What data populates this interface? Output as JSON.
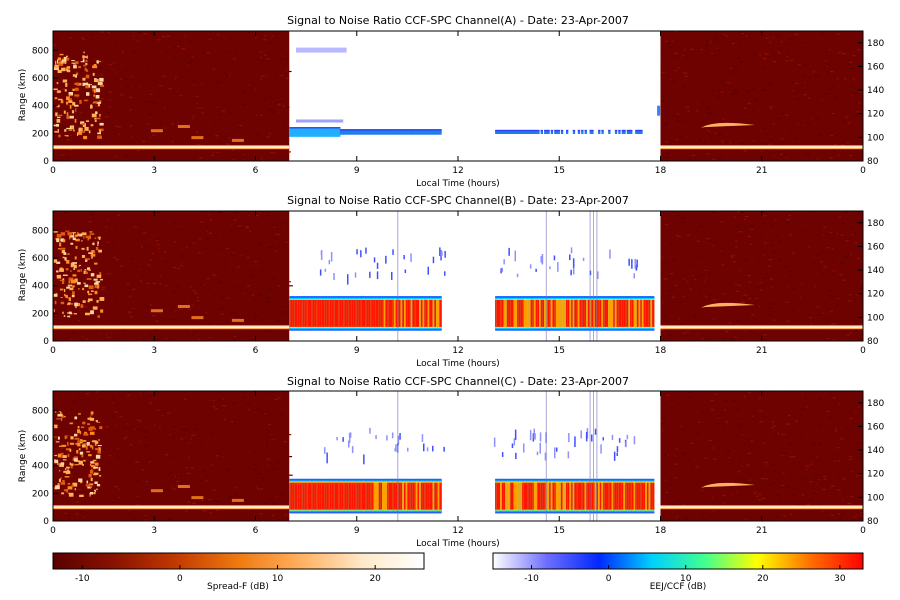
{
  "chart_data": {
    "type": "heatmap",
    "panels": [
      {
        "title": "Signal to Noise Ratio CCF-SPC Channel(A) - Date: 23-Apr-2007",
        "channel": "A",
        "variant": "A",
        "xlabel": "Local Time (hours)",
        "ylabel": "Range (km)",
        "xticks": [
          "0",
          "3",
          "6",
          "9",
          "12",
          "15",
          "18",
          "21",
          "0"
        ],
        "yticks_left": [
          "0",
          "200",
          "400",
          "600",
          "800"
        ],
        "yticks_right": [
          "80",
          "100",
          "120",
          "140",
          "160",
          "180"
        ],
        "ylim_km": [
          0,
          940
        ],
        "ylim_right": [
          80,
          190
        ],
        "xlim_hours": [
          0,
          24
        ],
        "spreadF_windows_hours": [
          [
            0,
            7
          ],
          [
            18,
            24
          ]
        ],
        "eej_ccf_window_hours": [
          7,
          18
        ],
        "eej_layer_km": 210,
        "eej_snr_dB": 0
      },
      {
        "title": "Signal to Noise Ratio CCF-SPC Channel(B) - Date: 23-Apr-2007",
        "channel": "B",
        "variant": "B",
        "xlabel": "Local Time (hours)",
        "ylabel": "Range (km)",
        "xticks": [
          "0",
          "3",
          "6",
          "9",
          "12",
          "15",
          "18",
          "21",
          "0"
        ],
        "yticks_left": [
          "0",
          "200",
          "400",
          "600",
          "800"
        ],
        "yticks_right": [
          "80",
          "100",
          "120",
          "140",
          "160",
          "180"
        ],
        "ylim_km": [
          0,
          940
        ],
        "ylim_right": [
          80,
          190
        ],
        "xlim_hours": [
          0,
          24
        ],
        "spreadF_windows_hours": [
          [
            0,
            7
          ],
          [
            18,
            24
          ]
        ],
        "eej_ccf_window_hours": [
          7,
          18
        ],
        "eej_layer_km": 210,
        "eej_snr_dB": 30
      },
      {
        "title": "Signal to Noise Ratio CCF-SPC Channel(C) - Date: 23-Apr-2007",
        "channel": "C",
        "variant": "C",
        "xlabel": "Local Time (hours)",
        "ylabel": "Range (km)",
        "xticks": [
          "0",
          "3",
          "6",
          "9",
          "12",
          "15",
          "18",
          "21",
          "0"
        ],
        "yticks_left": [
          "0",
          "200",
          "400",
          "600",
          "800"
        ],
        "yticks_right": [
          "80",
          "100",
          "120",
          "140",
          "160",
          "180"
        ],
        "ylim_km": [
          0,
          940
        ],
        "ylim_right": [
          80,
          190
        ],
        "xlim_hours": [
          0,
          24
        ],
        "spreadF_windows_hours": [
          [
            0,
            7
          ],
          [
            18,
            24
          ]
        ],
        "eej_ccf_window_hours": [
          7,
          18
        ],
        "eej_layer_km": 190,
        "eej_snr_dB": 30
      }
    ],
    "colorbars": [
      {
        "name": "spread-f",
        "label": "Spread-F (dB)",
        "range": [
          -13,
          25
        ],
        "ticks": [
          "-10",
          "0",
          "10",
          "20"
        ],
        "colors": [
          "#5a0000",
          "#8b1200",
          "#c23a00",
          "#f07a10",
          "#ffb060",
          "#ffe8c8",
          "#ffffff"
        ]
      },
      {
        "name": "eej-ccf",
        "label": "EEJ/CCF (dB)",
        "range": [
          -15,
          33
        ],
        "ticks": [
          "-10",
          "0",
          "10",
          "20",
          "30"
        ],
        "colors": [
          "#ffffff",
          "#7070ff",
          "#0028ff",
          "#00d0ff",
          "#40ff90",
          "#ffff00",
          "#ff7000",
          "#ff0000"
        ]
      }
    ]
  }
}
